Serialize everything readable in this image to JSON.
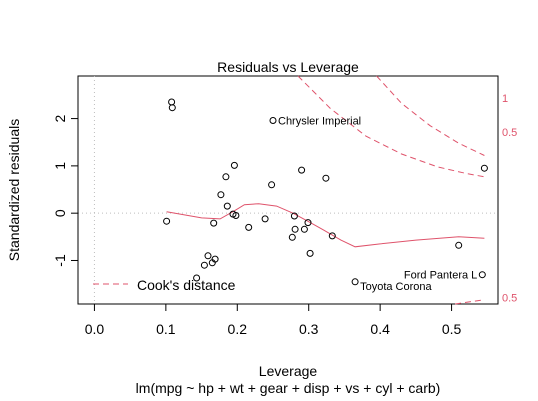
{
  "chart_data": {
    "type": "scatter",
    "title": "Residuals vs Leverage",
    "xlabel": "Leverage",
    "ylabel": "Standardized residuals",
    "subtitle": "lm(mpg ~ hp + wt + gear + disp + vs + cyl + carb)",
    "xlim": [
      -0.023,
      0.565
    ],
    "ylim": [
      -1.92,
      2.9
    ],
    "x_ticks": [
      0.0,
      0.1,
      0.2,
      0.3,
      0.4,
      0.5
    ],
    "x_tick_labels": [
      "0.0",
      "0.1",
      "0.2",
      "0.3",
      "0.4",
      "0.5"
    ],
    "y_ticks": [
      -1,
      0,
      1,
      2
    ],
    "y_tick_labels": [
      "-1",
      "0",
      "1",
      "2"
    ],
    "reference_lines": {
      "horizontal_y": 0,
      "vertical_x": 0,
      "style": "dotted",
      "color": "#bebebe"
    },
    "points": [
      {
        "x": 0.101,
        "y": -0.17
      },
      {
        "x": 0.108,
        "y": 2.35
      },
      {
        "x": 0.109,
        "y": 2.23
      },
      {
        "x": 0.143,
        "y": -1.37
      },
      {
        "x": 0.154,
        "y": -1.1
      },
      {
        "x": 0.159,
        "y": -0.9
      },
      {
        "x": 0.165,
        "y": -1.05
      },
      {
        "x": 0.167,
        "y": -0.21
      },
      {
        "x": 0.169,
        "y": -0.97
      },
      {
        "x": 0.177,
        "y": 0.39
      },
      {
        "x": 0.184,
        "y": 0.77
      },
      {
        "x": 0.186,
        "y": 0.15
      },
      {
        "x": 0.194,
        "y": -0.02
      },
      {
        "x": 0.196,
        "y": 1.01
      },
      {
        "x": 0.198,
        "y": -0.05
      },
      {
        "x": 0.216,
        "y": -0.3
      },
      {
        "x": 0.239,
        "y": -0.12
      },
      {
        "x": 0.248,
        "y": 0.6
      },
      {
        "x": 0.25,
        "y": 1.96
      },
      {
        "x": 0.277,
        "y": -0.51
      },
      {
        "x": 0.28,
        "y": -0.06
      },
      {
        "x": 0.281,
        "y": -0.34
      },
      {
        "x": 0.29,
        "y": 0.91
      },
      {
        "x": 0.294,
        "y": -0.34
      },
      {
        "x": 0.299,
        "y": -0.2
      },
      {
        "x": 0.302,
        "y": -0.85
      },
      {
        "x": 0.324,
        "y": 0.74
      },
      {
        "x": 0.333,
        "y": -0.48
      },
      {
        "x": 0.365,
        "y": -1.45
      },
      {
        "x": 0.51,
        "y": -0.68
      },
      {
        "x": 0.543,
        "y": -1.3
      },
      {
        "x": 0.546,
        "y": 0.95
      }
    ],
    "point_labels": [
      {
        "text": "Chrysler Imperial",
        "x": 0.25,
        "y": 1.96,
        "side": "right"
      },
      {
        "text": "Toyota Corona",
        "x": 0.365,
        "y": -1.45,
        "side": "below-right"
      },
      {
        "text": "Ford Pantera L",
        "x": 0.543,
        "y": -1.3,
        "side": "left"
      }
    ],
    "smoother": {
      "color": "#df536b",
      "x": [
        0.101,
        0.15,
        0.176,
        0.196,
        0.21,
        0.23,
        0.255,
        0.278,
        0.3,
        0.32,
        0.345,
        0.365,
        0.4,
        0.45,
        0.51,
        0.546
      ],
      "y": [
        0.03,
        -0.1,
        -0.12,
        0.05,
        0.18,
        0.2,
        0.15,
        0.0,
        -0.18,
        -0.35,
        -0.57,
        -0.71,
        -0.65,
        -0.57,
        -0.5,
        -0.53
      ]
    },
    "cooks_distance": {
      "color": "#df536b",
      "style": "dashed",
      "curves": [
        {
          "label": "1",
          "x": [
            0.395,
            0.43,
            0.47,
            0.51,
            0.546
          ],
          "y": [
            2.9,
            2.32,
            1.85,
            1.48,
            1.22
          ]
        },
        {
          "label": "0.5",
          "x": [
            0.285,
            0.33,
            0.38,
            0.43,
            0.48,
            0.52,
            0.546
          ],
          "y": [
            2.9,
            2.22,
            1.63,
            1.25,
            0.98,
            0.84,
            0.77
          ]
        },
        {
          "label": "0.5",
          "x": [
            0.505,
            0.546
          ],
          "y": [
            -1.92,
            -1.83
          ]
        }
      ],
      "edge_labels": [
        {
          "text": "1",
          "y": 2.44
        },
        {
          "text": "0.5",
          "y": 1.72
        },
        {
          "text": "0.5",
          "y": -1.78
        }
      ]
    },
    "legend": {
      "entries": [
        "Cook's distance"
      ],
      "placement": "bottom-left",
      "style": "dashed",
      "color": "#df536b"
    },
    "grid": false
  }
}
